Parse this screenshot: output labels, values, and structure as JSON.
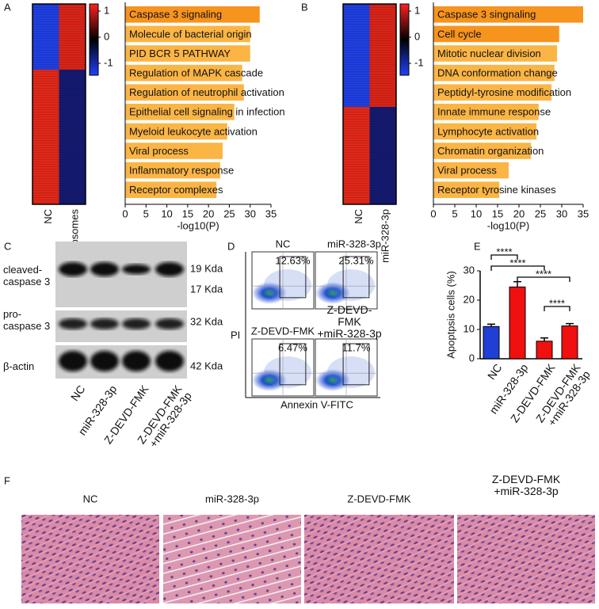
{
  "panel_labels": [
    "A",
    "B",
    "C",
    "D",
    "E",
    "F"
  ],
  "heatmaps": [
    {
      "conditions": [
        "NC",
        "Exosomes"
      ],
      "scale_ticks": [
        1,
        0,
        -1
      ]
    },
    {
      "conditions": [
        "NC",
        "miR-328-3p"
      ],
      "scale_ticks": [
        1,
        0,
        -1
      ]
    }
  ],
  "chart_data": [
    {
      "type": "hbar",
      "categories": [
        "Caspase 3 signaling",
        "Molecule of bacterial origin",
        "PID BCR 5 PATHWAY",
        "Regulation of MAPK cascade",
        "Regulation of neutrophil activation",
        "Epithelial cell signaling in infection",
        "Myeloid leukocyte activation",
        "Viral process",
        "Inflammatory response",
        "Receptor complexes"
      ],
      "values": [
        32.3,
        30,
        30,
        28.1,
        28.5,
        26.2,
        24.5,
        23.4,
        22.8,
        21.9
      ],
      "colors": [
        "#f7941d",
        "#fbb545",
        "#fbb545",
        "#fbb545",
        "#fbb545",
        "#fbb545",
        "#fbb545",
        "#fbb545",
        "#fbb545",
        "#fbb545"
      ],
      "xlim": [
        0,
        35
      ],
      "xticks": [
        0,
        5,
        10,
        15,
        20,
        25,
        30,
        35
      ],
      "xlabel": "-log10(P)"
    },
    {
      "type": "hbar",
      "categories": [
        "Caspase 3 singnaling",
        "Cell cycle",
        "Mitotic nuclear division",
        "DNA conformation change",
        "Peptidyl-tyrosine modification",
        "Innate immune response",
        "Lymphocyte activation",
        "Chromatin organization",
        "Viral process",
        "Receptor tyrosine kinases"
      ],
      "values": [
        35,
        29.4,
        28.9,
        28.3,
        27.6,
        24.6,
        24.1,
        22.8,
        17.6,
        15.4
      ],
      "colors": [
        "#f7941d",
        "#f7941d",
        "#fbb545",
        "#fbb545",
        "#fbb545",
        "#fbb545",
        "#fbb545",
        "#fbb545",
        "#fbb545",
        "#fbb545"
      ],
      "xlim": [
        0,
        35
      ],
      "xticks": [
        0,
        5,
        10,
        15,
        20,
        25,
        30,
        35
      ],
      "xlabel": "-log10(P)"
    },
    {
      "type": "bar",
      "categories": [
        "NC",
        "miR-328-3p",
        "Z-DEVD-FMK",
        "Z-DEVD-FMK\n+miR-328-3p"
      ],
      "values": [
        11,
        24.5,
        6,
        11.2
      ],
      "errors": [
        0.8,
        1.8,
        1.1,
        0.8
      ],
      "colors": [
        "#1f3fd6",
        "#f01010",
        "#f01010",
        "#f01010"
      ],
      "ylim": [
        0,
        30
      ],
      "yticks": [
        0,
        10,
        20,
        30
      ],
      "ylabel": "Apoptpsis cells (%)",
      "annotations": [
        "****",
        "****",
        "****",
        "****"
      ]
    }
  ],
  "western_blot": {
    "rows": [
      {
        "label": "cleaved-\ncaspase 3",
        "sizes": [
          "19 Kda",
          "17 Kda"
        ]
      },
      {
        "label": "pro-\ncaspase 3",
        "sizes": [
          "32 Kda"
        ]
      },
      {
        "label": "β-actin",
        "sizes": [
          "42 Kda"
        ]
      }
    ],
    "lanes": [
      "NC",
      "miR-328-3p",
      "Z-DEVD-FMK",
      "Z-DEVD-FMK\n+miR-328-3p"
    ]
  },
  "flow_cytometry": {
    "plots": [
      {
        "title": "NC",
        "gate": "12.63%"
      },
      {
        "title": "miR-328-3p",
        "gate": "25.31%"
      },
      {
        "title": "Z-DEVD-FMK",
        "gate": "6.47%"
      },
      {
        "title": "Z-DEVD-FMK\n+miR-328-3p",
        "gate": "11.7%"
      }
    ],
    "y_label": "PI",
    "x_label": "Annexin V-FITC"
  },
  "histology": {
    "titles": [
      "NC",
      "miR-328-3p",
      "Z-DEVD-FMK",
      "Z-DEVD-FMK\n+miR-328-3p"
    ]
  }
}
